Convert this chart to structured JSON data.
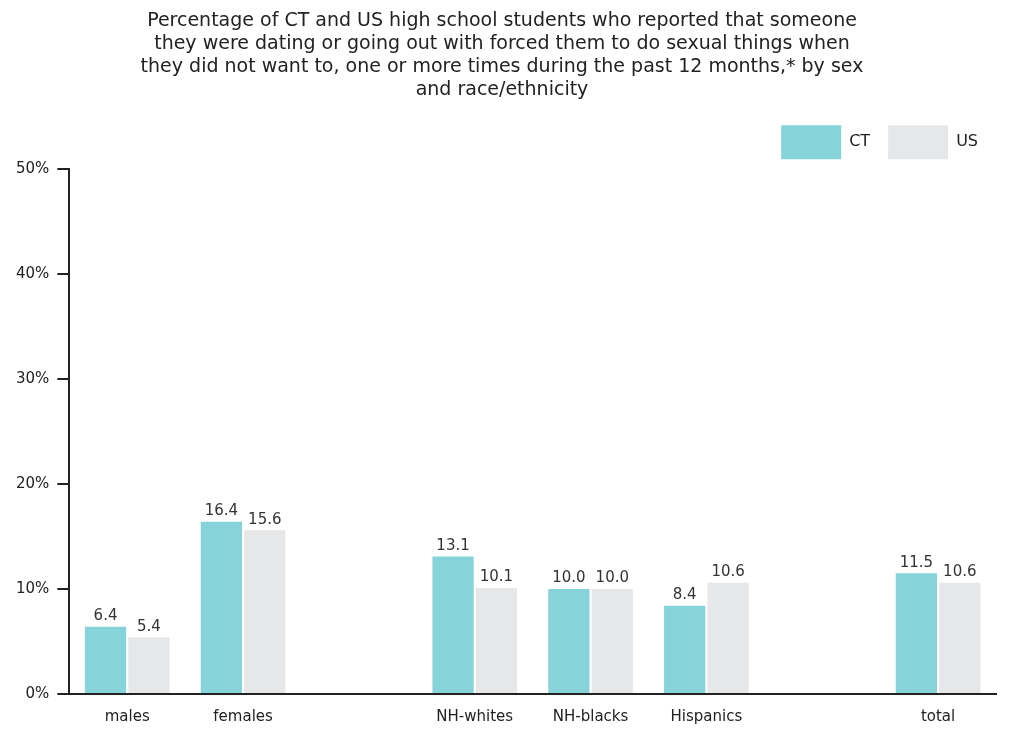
{
  "chart_data": {
    "type": "bar",
    "title": "Percentage of CT and US high school students who reported that someone they were dating or going out with forced them to do sexual things when they did not want to, one or more times during the past 12 months,* by sex and race/ethnicity",
    "categories": [
      "males",
      "females",
      null,
      "NH-whites",
      "NH-blacks",
      "Hispanics",
      null,
      "total"
    ],
    "series": [
      {
        "name": "CT",
        "color": "#86d3da",
        "values": [
          6.4,
          16.4,
          null,
          13.1,
          10.0,
          8.4,
          null,
          11.5
        ],
        "value_labels": [
          "6.4",
          "16.4",
          null,
          "13.1",
          "10.0",
          "8.4",
          null,
          "11.5"
        ]
      },
      {
        "name": "US",
        "color": "#e6e7e8",
        "values": [
          5.4,
          15.6,
          null,
          10.1,
          10.0,
          10.6,
          null,
          10.6
        ],
        "value_labels": [
          "5.4",
          "15.6",
          null,
          "10.1",
          "10.0",
          "10.6",
          null,
          "10.6"
        ]
      }
    ],
    "ylim": [
      0,
      50
    ],
    "yticks": [
      {
        "value": 0,
        "label": "0%"
      },
      {
        "value": 10,
        "label": "10%"
      },
      {
        "value": 20,
        "label": "20%"
      },
      {
        "value": 30,
        "label": "30%"
      },
      {
        "value": 40,
        "label": "40%"
      },
      {
        "value": 50,
        "label": "50%"
      }
    ],
    "grid": false,
    "legend": "top right"
  }
}
